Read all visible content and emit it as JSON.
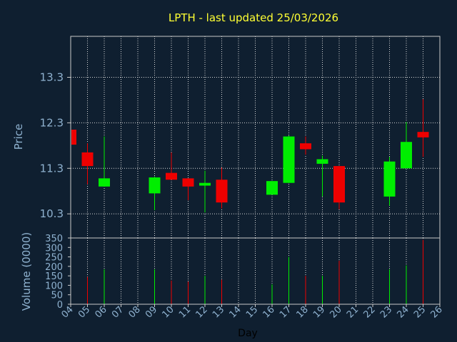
{
  "chart_data": [
    {
      "type": "candlestick",
      "title": "LPTH - last updated 25/03/2026",
      "ylabel": "Price",
      "yticks": [
        10.3,
        11.3,
        12.3,
        13.3
      ],
      "ylim": [
        9.77,
        14.2
      ],
      "xlim": [
        4,
        26
      ],
      "grid": true,
      "colors": {
        "up": "#00ee00",
        "down": "#ee0000",
        "title": "#ffff33",
        "axis_text": "#8fb2d0"
      },
      "candles": [
        {
          "day": 4,
          "open": 12.15,
          "close": 11.82,
          "high": 12.15,
          "low": 11.82
        },
        {
          "day": 5,
          "open": 11.65,
          "close": 11.35,
          "high": 11.85,
          "low": 10.95
        },
        {
          "day": 6,
          "open": 10.9,
          "close": 11.08,
          "high": 12.0,
          "low": 10.9
        },
        {
          "day": 9,
          "open": 10.75,
          "close": 11.1,
          "high": 11.12,
          "low": 10.38
        },
        {
          "day": 10,
          "open": 11.2,
          "close": 11.05,
          "high": 11.65,
          "low": 11.05
        },
        {
          "day": 11,
          "open": 11.08,
          "close": 10.9,
          "high": 11.08,
          "low": 10.6
        },
        {
          "day": 12,
          "open": 10.92,
          "close": 10.98,
          "high": 11.25,
          "low": 10.33
        },
        {
          "day": 13,
          "open": 11.05,
          "close": 10.55,
          "high": 11.32,
          "low": 10.42
        },
        {
          "day": 16,
          "open": 10.72,
          "close": 11.02,
          "high": 11.02,
          "low": 10.72
        },
        {
          "day": 17,
          "open": 10.98,
          "close": 12.0,
          "high": 12.02,
          "low": 10.98
        },
        {
          "day": 18,
          "open": 11.85,
          "close": 11.72,
          "high": 12.0,
          "low": 11.6
        },
        {
          "day": 19,
          "open": 11.4,
          "close": 11.5,
          "high": 11.58,
          "low": 10.68
        },
        {
          "day": 20,
          "open": 11.35,
          "close": 10.55,
          "high": 11.35,
          "low": 10.4
        },
        {
          "day": 23,
          "open": 10.68,
          "close": 11.45,
          "high": 11.55,
          "low": 10.48
        },
        {
          "day": 24,
          "open": 11.3,
          "close": 11.88,
          "high": 12.32,
          "low": 11.3
        },
        {
          "day": 25,
          "open": 12.1,
          "close": 11.98,
          "high": 12.82,
          "low": 11.55
        }
      ]
    },
    {
      "type": "bar",
      "ylabel": "Volume (0000)",
      "xlabel": "Day",
      "ylim": [
        0,
        350
      ],
      "yticks": [
        0,
        50,
        100,
        150,
        200,
        250,
        300,
        350
      ],
      "xticks": [
        "04",
        "05",
        "06",
        "07",
        "08",
        "09",
        "10",
        "11",
        "12",
        "13",
        "14",
        "15",
        "16",
        "17",
        "18",
        "19",
        "20",
        "21",
        "22",
        "23",
        "24",
        "25",
        "26"
      ],
      "bars": [
        {
          "day": 5,
          "value": 145,
          "color": "#ee0000"
        },
        {
          "day": 6,
          "value": 185,
          "color": "#00ee00"
        },
        {
          "day": 9,
          "value": 185,
          "color": "#00ee00"
        },
        {
          "day": 10,
          "value": 125,
          "color": "#ee0000"
        },
        {
          "day": 11,
          "value": 120,
          "color": "#ee0000"
        },
        {
          "day": 12,
          "value": 150,
          "color": "#00ee00"
        },
        {
          "day": 13,
          "value": 130,
          "color": "#ee0000"
        },
        {
          "day": 16,
          "value": 105,
          "color": "#00ee00"
        },
        {
          "day": 17,
          "value": 250,
          "color": "#00ee00"
        },
        {
          "day": 18,
          "value": 150,
          "color": "#ee0000"
        },
        {
          "day": 19,
          "value": 150,
          "color": "#00ee00"
        },
        {
          "day": 20,
          "value": 230,
          "color": "#ee0000"
        },
        {
          "day": 23,
          "value": 185,
          "color": "#00ee00"
        },
        {
          "day": 24,
          "value": 205,
          "color": "#00ee00"
        },
        {
          "day": 25,
          "value": 340,
          "color": "#ee0000"
        }
      ]
    }
  ]
}
